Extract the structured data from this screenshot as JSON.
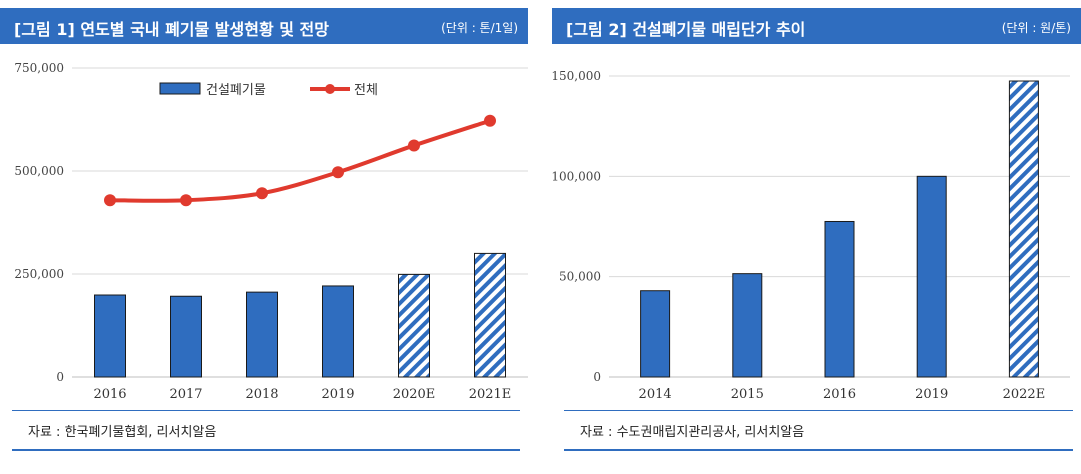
{
  "colors": {
    "bar": "#2f6dbf",
    "bar_stroke": "#1a1a1a",
    "line": "#e03a2e",
    "grid": "#d9d9d9",
    "title_bg": "#2f6dbf"
  },
  "left": {
    "title": "[그림 1] 연도별 국내 폐기물 발생현황 및 전망",
    "unit": "(단위 : 톤/1일)",
    "source": "자료 : 한국폐기물협회, 리서치알음",
    "chart_data": {
      "type": "bar",
      "title": "[그림 1] 연도별 국내 폐기물 발생현황 및 전망",
      "categories": [
        "2016",
        "2017",
        "2018",
        "2019",
        "2020E",
        "2021E"
      ],
      "forecast": [
        false,
        false,
        false,
        false,
        true,
        true
      ],
      "series": [
        {
          "name": "건설폐기물",
          "kind": "bar",
          "values": [
            199000,
            196000,
            206000,
            221000,
            249000,
            300000
          ]
        },
        {
          "name": "전체",
          "kind": "line",
          "values": [
            429000,
            429000,
            446000,
            497000,
            562000,
            622000
          ]
        }
      ],
      "ylim": [
        0,
        750000
      ],
      "yticks": [
        0,
        250000,
        500000,
        750000
      ],
      "ytick_labels": [
        "0",
        "250,000",
        "500,000",
        "750,000"
      ],
      "legend": "top"
    }
  },
  "right": {
    "title": "[그림 2] 건설폐기물 매립단가 추이",
    "unit": "(단위 : 원/톤)",
    "source": "자료 : 수도권매립지관리공사, 리서치알음",
    "chart_data": {
      "type": "bar",
      "title": "[그림 2] 건설폐기물 매립단가 추이",
      "categories": [
        "2014",
        "2015",
        "2016",
        "2019",
        "2022E"
      ],
      "forecast": [
        false,
        false,
        false,
        false,
        true
      ],
      "series": [
        {
          "name": "매립단가",
          "kind": "bar",
          "values": [
            43000,
            51500,
            77500,
            100000,
            147500
          ]
        }
      ],
      "ylim": [
        0,
        150000
      ],
      "yticks": [
        0,
        50000,
        100000,
        150000
      ],
      "ytick_labels": [
        "0",
        "50,000",
        "100,000",
        "150,000"
      ]
    }
  }
}
